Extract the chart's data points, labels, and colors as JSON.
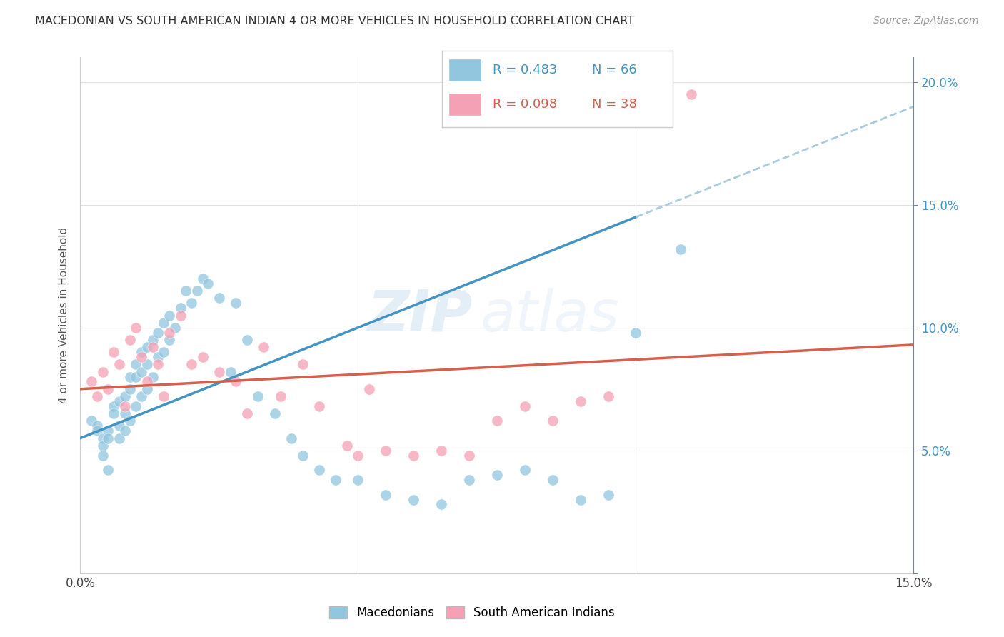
{
  "title": "MACEDONIAN VS SOUTH AMERICAN INDIAN 4 OR MORE VEHICLES IN HOUSEHOLD CORRELATION CHART",
  "source": "Source: ZipAtlas.com",
  "ylabel": "4 or more Vehicles in Household",
  "xlim": [
    0.0,
    0.15
  ],
  "ylim": [
    0.0,
    0.21
  ],
  "watermark": "ZIPatlas",
  "legend_blue_r": "R = 0.483",
  "legend_blue_n": "N = 66",
  "legend_pink_r": "R = 0.098",
  "legend_pink_n": "N = 38",
  "blue_color": "#92c5de",
  "pink_color": "#f4a0b5",
  "blue_line_color": "#4393c3",
  "pink_line_color": "#d6604d",
  "background_color": "#ffffff",
  "grid_color": "#e0e0e0",
  "macedonians_x": [
    0.002,
    0.003,
    0.003,
    0.004,
    0.004,
    0.004,
    0.005,
    0.005,
    0.005,
    0.006,
    0.006,
    0.007,
    0.007,
    0.007,
    0.008,
    0.008,
    0.008,
    0.009,
    0.009,
    0.009,
    0.01,
    0.01,
    0.01,
    0.011,
    0.011,
    0.011,
    0.012,
    0.012,
    0.012,
    0.013,
    0.013,
    0.014,
    0.014,
    0.015,
    0.015,
    0.016,
    0.016,
    0.017,
    0.018,
    0.019,
    0.02,
    0.021,
    0.022,
    0.023,
    0.025,
    0.027,
    0.028,
    0.03,
    0.032,
    0.035,
    0.038,
    0.04,
    0.043,
    0.046,
    0.05,
    0.055,
    0.06,
    0.065,
    0.07,
    0.075,
    0.08,
    0.085,
    0.09,
    0.095,
    0.1,
    0.108
  ],
  "macedonians_y": [
    0.062,
    0.06,
    0.058,
    0.055,
    0.052,
    0.048,
    0.058,
    0.055,
    0.042,
    0.068,
    0.065,
    0.07,
    0.06,
    0.055,
    0.072,
    0.065,
    0.058,
    0.08,
    0.075,
    0.062,
    0.085,
    0.08,
    0.068,
    0.09,
    0.082,
    0.072,
    0.092,
    0.085,
    0.075,
    0.095,
    0.08,
    0.098,
    0.088,
    0.102,
    0.09,
    0.105,
    0.095,
    0.1,
    0.108,
    0.115,
    0.11,
    0.115,
    0.12,
    0.118,
    0.112,
    0.082,
    0.11,
    0.095,
    0.072,
    0.065,
    0.055,
    0.048,
    0.042,
    0.038,
    0.038,
    0.032,
    0.03,
    0.028,
    0.038,
    0.04,
    0.042,
    0.038,
    0.03,
    0.032,
    0.098,
    0.132
  ],
  "south_american_x": [
    0.002,
    0.003,
    0.004,
    0.005,
    0.006,
    0.007,
    0.008,
    0.009,
    0.01,
    0.011,
    0.012,
    0.013,
    0.014,
    0.015,
    0.016,
    0.018,
    0.02,
    0.022,
    0.025,
    0.028,
    0.03,
    0.033,
    0.036,
    0.04,
    0.043,
    0.048,
    0.05,
    0.052,
    0.055,
    0.06,
    0.065,
    0.07,
    0.075,
    0.08,
    0.085,
    0.09,
    0.095,
    0.11
  ],
  "south_american_y": [
    0.078,
    0.072,
    0.082,
    0.075,
    0.09,
    0.085,
    0.068,
    0.095,
    0.1,
    0.088,
    0.078,
    0.092,
    0.085,
    0.072,
    0.098,
    0.105,
    0.085,
    0.088,
    0.082,
    0.078,
    0.065,
    0.092,
    0.072,
    0.085,
    0.068,
    0.052,
    0.048,
    0.075,
    0.05,
    0.048,
    0.05,
    0.048,
    0.062,
    0.068,
    0.062,
    0.07,
    0.072,
    0.195
  ]
}
